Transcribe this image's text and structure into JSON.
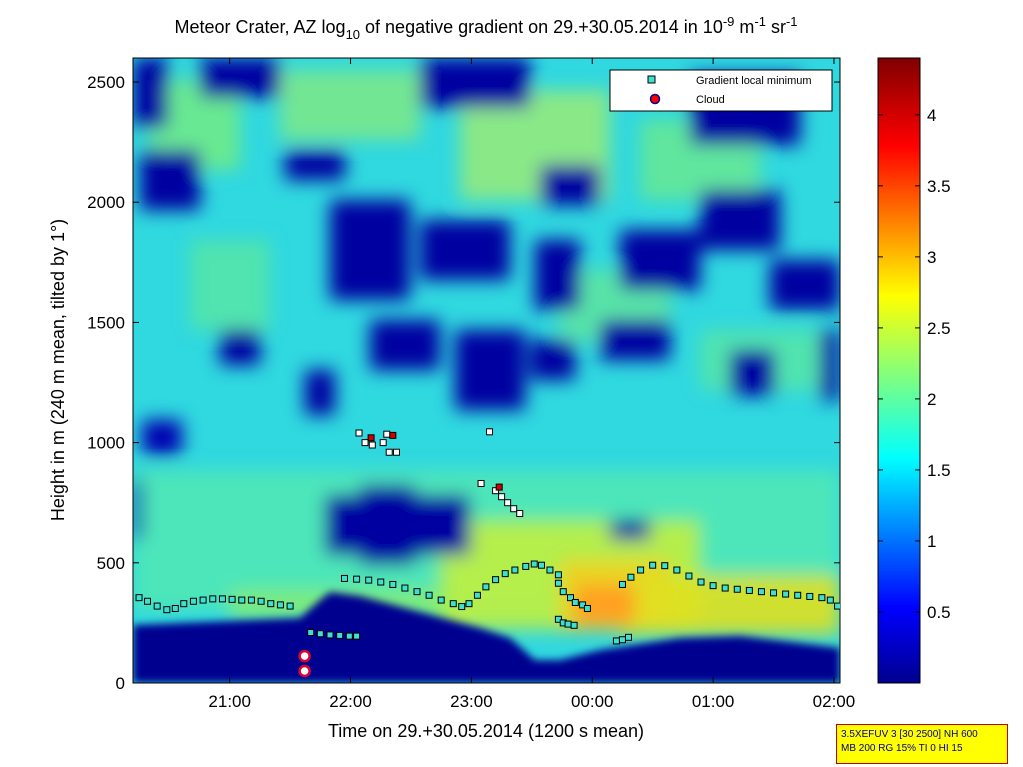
{
  "chart_data": {
    "type": "heatmap",
    "title": "Meteor Crater, AZ log10 of negative gradient on 29.+30.05.2014 in 10-9 m-1 sr-1",
    "title_parts": {
      "a": "Meteor Crater, AZ log",
      "sub10": "10",
      "b": " of negative gradient on 29.+30.05.2014 in 10",
      "sup_neg9": "-9",
      "c": " m",
      "sup_neg1a": "-1",
      "d": " sr",
      "sup_neg1b": "-1"
    },
    "xlabel": "Time on 29.+30.05.2014 (1200 s mean)",
    "ylabel": "Height in m (240 m mean, tilted by 1°)",
    "x_range_hours": [
      20.2,
      26.05
    ],
    "ylim": [
      0,
      2600
    ],
    "x_ticks": [
      {
        "h": 21,
        "label": "21:00"
      },
      {
        "h": 22,
        "label": "22:00"
      },
      {
        "h": 23,
        "label": "23:00"
      },
      {
        "h": 24,
        "label": "00:00"
      },
      {
        "h": 25,
        "label": "01:00"
      },
      {
        "h": 26,
        "label": "02:00"
      }
    ],
    "y_ticks": [
      0,
      500,
      1000,
      1500,
      2000,
      2500
    ],
    "colorbar": {
      "range": [
        0,
        4.4
      ],
      "ticks": [
        "0.5",
        "1",
        "1.5",
        "2",
        "2.5",
        "3",
        "3.5",
        "4"
      ],
      "colormap": "jet"
    },
    "legend": {
      "position": "top-right",
      "entries": [
        {
          "label": "Gradient local minimum",
          "marker": "square",
          "color": "#40e0d0"
        },
        {
          "label": "Cloud",
          "marker": "circle",
          "color": "#ff0000"
        }
      ]
    },
    "series": [
      {
        "name": "Gradient local minimum",
        "points": [
          [
            20.25,
            355
          ],
          [
            20.32,
            340
          ],
          [
            20.4,
            320
          ],
          [
            20.48,
            305
          ],
          [
            20.55,
            310
          ],
          [
            20.62,
            330
          ],
          [
            20.7,
            340
          ],
          [
            20.78,
            345
          ],
          [
            20.86,
            350
          ],
          [
            20.94,
            350
          ],
          [
            21.02,
            348
          ],
          [
            21.1,
            345
          ],
          [
            21.18,
            345
          ],
          [
            21.26,
            340
          ],
          [
            21.34,
            330
          ],
          [
            21.42,
            325
          ],
          [
            21.5,
            320
          ],
          [
            21.67,
            210
          ],
          [
            21.75,
            205
          ],
          [
            21.83,
            200
          ],
          [
            21.91,
            198
          ],
          [
            21.99,
            195
          ],
          [
            22.05,
            195
          ],
          [
            21.95,
            435
          ],
          [
            22.05,
            432
          ],
          [
            22.15,
            428
          ],
          [
            22.25,
            420
          ],
          [
            22.35,
            410
          ],
          [
            22.45,
            395
          ],
          [
            22.55,
            380
          ],
          [
            22.65,
            365
          ],
          [
            22.75,
            345
          ],
          [
            22.85,
            330
          ],
          [
            22.92,
            318
          ],
          [
            22.98,
            330
          ],
          [
            23.05,
            365
          ],
          [
            23.12,
            400
          ],
          [
            23.2,
            430
          ],
          [
            23.28,
            455
          ],
          [
            23.36,
            470
          ],
          [
            23.45,
            485
          ],
          [
            23.52,
            495
          ],
          [
            23.58,
            490
          ],
          [
            23.65,
            470
          ],
          [
            23.72,
            450
          ],
          [
            23.72,
            415
          ],
          [
            23.76,
            380
          ],
          [
            23.82,
            355
          ],
          [
            23.86,
            335
          ],
          [
            23.92,
            325
          ],
          [
            23.96,
            310
          ],
          [
            23.72,
            265
          ],
          [
            23.76,
            250
          ],
          [
            23.8,
            245
          ],
          [
            23.85,
            240
          ],
          [
            24.2,
            175
          ],
          [
            24.25,
            180
          ],
          [
            24.3,
            190
          ],
          [
            24.25,
            410
          ],
          [
            24.32,
            440
          ],
          [
            24.4,
            470
          ],
          [
            24.5,
            490
          ],
          [
            24.6,
            488
          ],
          [
            24.7,
            470
          ],
          [
            24.8,
            445
          ],
          [
            24.9,
            420
          ],
          [
            25.0,
            405
          ],
          [
            25.1,
            395
          ],
          [
            25.2,
            390
          ],
          [
            25.3,
            385
          ],
          [
            25.4,
            380
          ],
          [
            25.5,
            375
          ],
          [
            25.6,
            370
          ],
          [
            25.7,
            365
          ],
          [
            25.8,
            360
          ],
          [
            25.9,
            355
          ],
          [
            25.97,
            345
          ],
          [
            26.03,
            320
          ],
          [
            22.07,
            1040
          ],
          [
            22.12,
            1000
          ],
          [
            22.18,
            990
          ],
          [
            22.27,
            1000
          ],
          [
            22.32,
            960
          ],
          [
            22.38,
            960
          ],
          [
            22.3,
            1035
          ],
          [
            23.15,
            1045
          ],
          [
            23.08,
            830
          ],
          [
            23.2,
            800
          ],
          [
            23.25,
            775
          ],
          [
            23.3,
            750
          ],
          [
            23.35,
            725
          ],
          [
            23.4,
            705
          ]
        ]
      },
      {
        "name": "Cloud",
        "points": [
          [
            21.62,
            112
          ],
          [
            21.62,
            50
          ],
          [
            22.17,
            1020
          ],
          [
            22.35,
            1030
          ],
          [
            23.23,
            815
          ]
        ]
      }
    ]
  },
  "info_box": {
    "line1": "3.5XEFUV 3 [30 2500] NH 600",
    "line2": "MB 200 RG 15% TI 0 HI 15"
  }
}
